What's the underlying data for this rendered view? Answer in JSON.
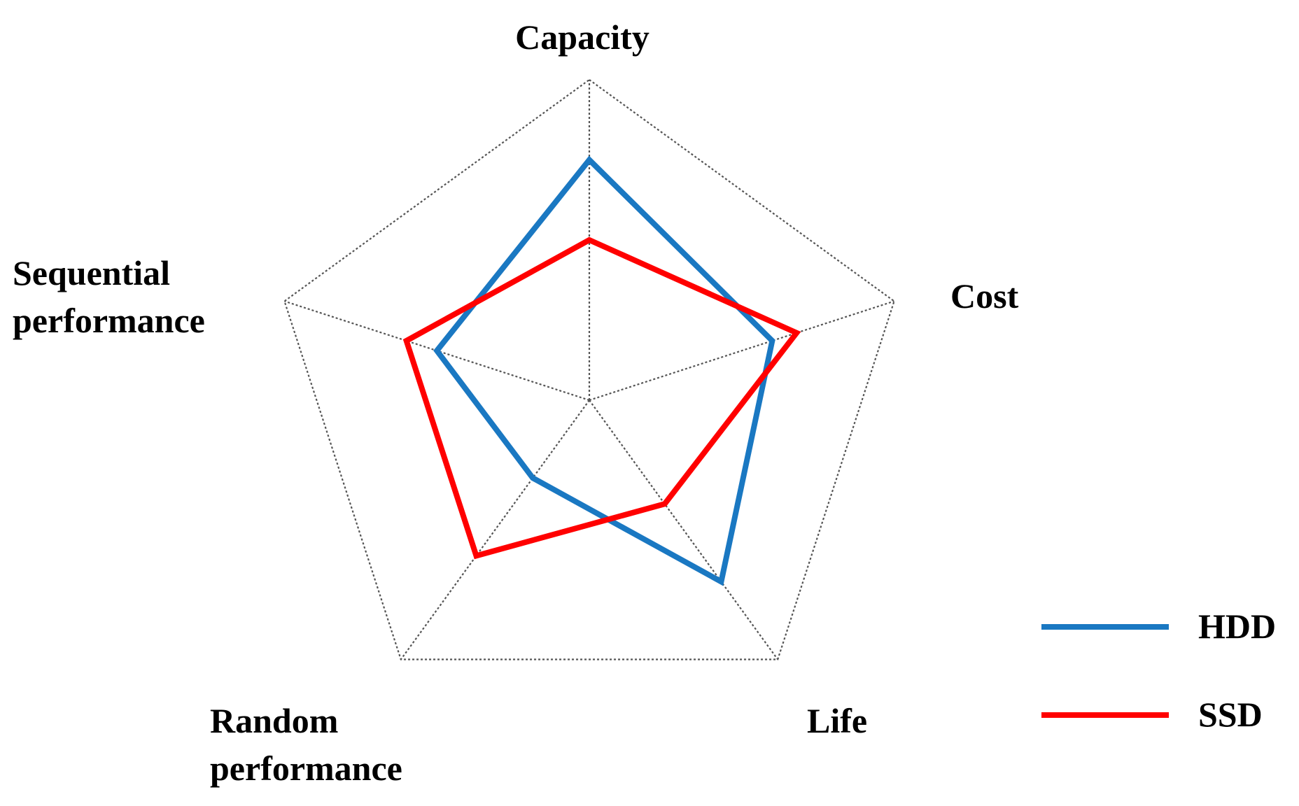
{
  "chart_data": {
    "type": "radar",
    "title": "",
    "axes": [
      {
        "key": "capacity",
        "label_lines": [
          "Capacity"
        ]
      },
      {
        "key": "cost",
        "label_lines": [
          "Cost"
        ]
      },
      {
        "key": "life",
        "label_lines": [
          "Life"
        ]
      },
      {
        "key": "random",
        "label_lines": [
          "Random",
          "performance"
        ]
      },
      {
        "key": "sequential",
        "label_lines": [
          "Sequential",
          "performance"
        ]
      }
    ],
    "range": [
      0,
      1
    ],
    "series": [
      {
        "name": "HDD",
        "color": "#1a78c2",
        "values": [
          0.75,
          0.6,
          0.7,
          0.3,
          0.5
        ]
      },
      {
        "name": "SSD",
        "color": "#ff0000",
        "values": [
          0.5,
          0.68,
          0.4,
          0.6,
          0.6
        ]
      }
    ],
    "legend": {
      "placement": "bottom-right"
    }
  }
}
